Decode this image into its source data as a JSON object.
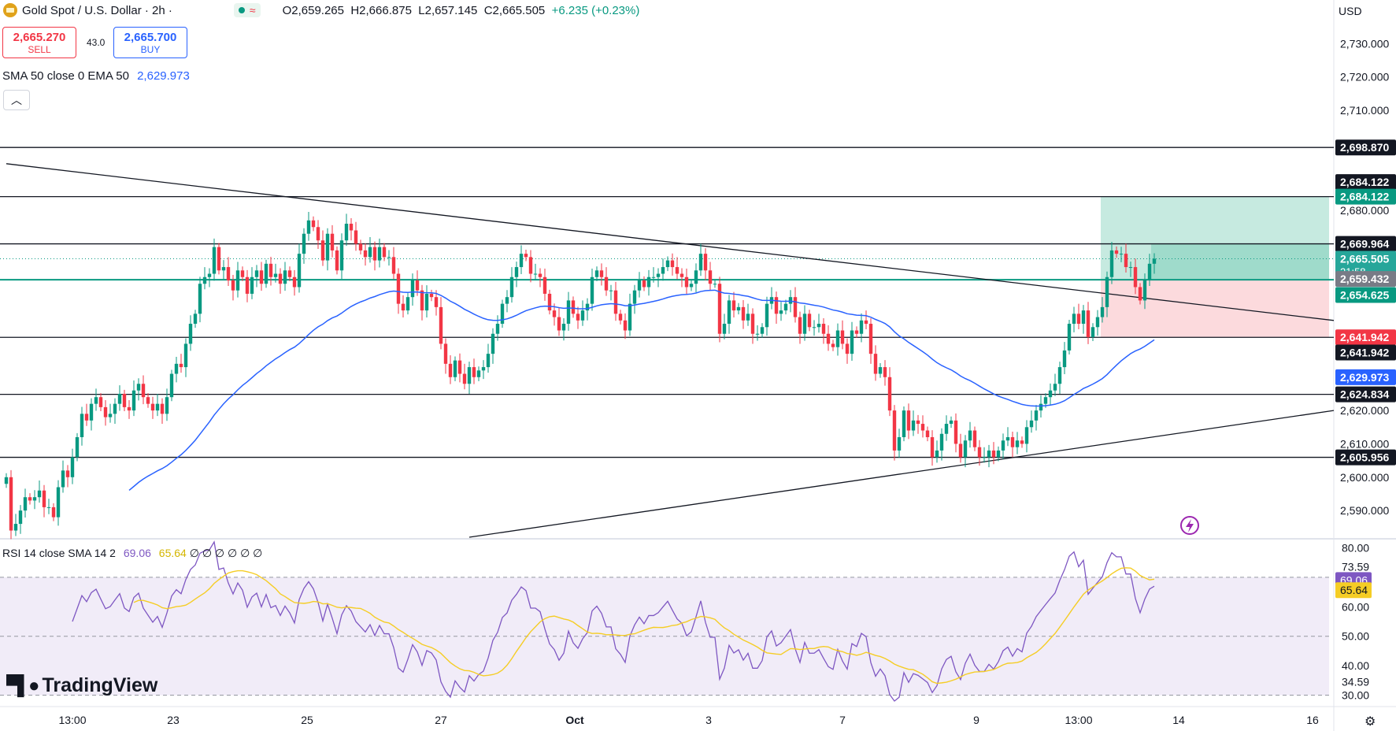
{
  "header": {
    "symbol": "Gold Spot / U.S. Dollar · 2h ·",
    "open": "O2,659.265",
    "high": "H2,666.875",
    "low": "L2,657.145",
    "close": "C2,665.505",
    "change": "+6.235 (+0.23%)"
  },
  "trade": {
    "sell_price": "2,665.270",
    "sell_label": "SELL",
    "spread": "43.0",
    "buy_price": "2,665.700",
    "buy_label": "BUY"
  },
  "indicators": {
    "sma_label": "SMA 50 close 0 EMA 50",
    "sma_value": "2,629.973",
    "rsi_label": "RSI 14 close SMA 14 2",
    "rsi_value": "69.06",
    "rsi_sma_value": "65.64",
    "rsi_extra": "∅ ∅ ∅ ∅ ∅ ∅"
  },
  "currency": "USD",
  "brand": "TradingView",
  "colors": {
    "up": "#089981",
    "down": "#f23645",
    "sma": "#2962ff",
    "rsi": "#7e57c2",
    "rsi_sma": "#f5cd25",
    "target": "#b3e3d6",
    "stop": "#fbd4d7"
  },
  "chart_data": {
    "type": "candlestick",
    "price_axis": {
      "min": 2582,
      "max": 2736,
      "ticks": [
        2590,
        2600,
        2610,
        2620,
        2680,
        2710,
        2720,
        2730
      ],
      "tick_labels": [
        "2,590.000",
        "2,600.000",
        "2,610.000",
        "2,620.000",
        "2,680.000",
        "2,710.000",
        "2,720.000",
        "2,730.000"
      ]
    },
    "time_axis": {
      "labels": [
        "13:00",
        "23",
        "25",
        "27",
        "Oct",
        "3",
        "7",
        "9",
        "13:00",
        "14",
        "16"
      ],
      "bold": [
        "Oct"
      ]
    },
    "horizontal_levels": [
      2698.87,
      2684.122,
      2669.964,
      2641.942,
      2624.834,
      2605.956
    ],
    "teal_level": 2659.432,
    "price_tags": [
      {
        "value": 2698.87,
        "label": "2,698.870",
        "kind": "level"
      },
      {
        "value": 2688.5,
        "label": "2,684.122",
        "kind": "level"
      },
      {
        "value": 2684.122,
        "label": "2,684.122",
        "kind": "target"
      },
      {
        "value": 2669.964,
        "label": "2,669.964",
        "kind": "level"
      },
      {
        "value": 2665.505,
        "label": "2,665.505",
        "sub": "21:58",
        "kind": "price"
      },
      {
        "value": 2659.432,
        "label": "2,659.432",
        "kind": "entry"
      },
      {
        "value": 2654.625,
        "label": "2,654.625",
        "kind": "teal"
      },
      {
        "value": 2641.942,
        "label": "2,641.942",
        "kind": "stop"
      },
      {
        "value": 2637.4,
        "label": "2,641.942",
        "kind": "level"
      },
      {
        "value": 2629.973,
        "label": "2,629.973",
        "kind": "sma"
      },
      {
        "value": 2624.834,
        "label": "2,624.834",
        "kind": "level"
      },
      {
        "value": 2605.956,
        "label": "2,605.956",
        "kind": "level"
      }
    ],
    "position_tool": {
      "entry": 2659.432,
      "target": 2684.122,
      "stop": 2641.942
    },
    "trendlines": [
      {
        "from": [
          0,
          2694
        ],
        "to": [
          266,
          2647
        ]
      },
      {
        "from": [
          98,
          2582
        ],
        "to": [
          266,
          2620
        ]
      }
    ],
    "closes": [
      2600,
      2584,
      2586,
      2590,
      2594,
      2593,
      2594,
      2596,
      2591,
      2591,
      2588,
      2597,
      2602,
      2600,
      2606,
      2612,
      2619,
      2617,
      2622,
      2624,
      2621,
      2618,
      2619,
      2622,
      2625,
      2621,
      2620,
      2626,
      2628,
      2624,
      2622,
      2620,
      2622,
      2619,
      2624,
      2631,
      2634,
      2633,
      2640,
      2646,
      2649,
      2658,
      2660,
      2661,
      2669,
      2662,
      2663,
      2659,
      2656,
      2662,
      2660,
      2655,
      2660,
      2662,
      2658,
      2664,
      2660,
      2661,
      2658,
      2662,
      2660,
      2657,
      2667,
      2673,
      2677,
      2675,
      2671,
      2665,
      2673,
      2668,
      2662,
      2671,
      2676,
      2674,
      2670,
      2668,
      2666,
      2669,
      2665,
      2669,
      2666,
      2666,
      2661,
      2652,
      2650,
      2654,
      2659,
      2656,
      2650,
      2655,
      2654,
      2651,
      2640,
      2634,
      2630,
      2635,
      2631,
      2628,
      2633,
      2630,
      2632,
      2633,
      2637,
      2643,
      2646,
      2652,
      2654,
      2660,
      2663,
      2667,
      2666,
      2661,
      2661,
      2660,
      2655,
      2650,
      2648,
      2644,
      2646,
      2653,
      2649,
      2647,
      2650,
      2652,
      2660,
      2662,
      2660,
      2656,
      2656,
      2649,
      2647,
      2644,
      2652,
      2656,
      2659,
      2657,
      2660,
      2660,
      2661,
      2663,
      2665,
      2663,
      2661,
      2660,
      2657,
      2658,
      2662,
      2667,
      2662,
      2658,
      2658,
      2643,
      2646,
      2653,
      2650,
      2651,
      2647,
      2649,
      2643,
      2643,
      2645,
      2652,
      2654,
      2649,
      2650,
      2652,
      2654,
      2648,
      2643,
      2649,
      2645,
      2645,
      2646,
      2643,
      2640,
      2639,
      2644,
      2640,
      2637,
      2644,
      2643,
      2647,
      2646,
      2637,
      2631,
      2633,
      2630,
      2620,
      2608,
      2612,
      2620,
      2614,
      2617,
      2616,
      2614,
      2612,
      2606,
      2608,
      2613,
      2616,
      2617,
      2610,
      2606,
      2611,
      2614,
      2609,
      2606,
      2606,
      2608,
      2606,
      2608,
      2611,
      2612,
      2609,
      2611,
      2610,
      2615,
      2617,
      2620,
      2622,
      2624,
      2626,
      2628,
      2633,
      2638,
      2646,
      2649,
      2646,
      2650,
      2642,
      2645,
      2648,
      2651,
      2660,
      2668,
      2667,
      2667,
      2663,
      2663,
      2657,
      2653,
      2659,
      2664,
      2665.505
    ],
    "rsi": {
      "axis_labels": [
        "80.00",
        "73.59",
        "60.00",
        "50.00",
        "40.00",
        "34.59",
        "30.00"
      ],
      "bands": [
        70,
        30
      ],
      "mid": 50,
      "min": 28,
      "max": 82,
      "value": 69.06,
      "sma_value": 65.64
    }
  }
}
